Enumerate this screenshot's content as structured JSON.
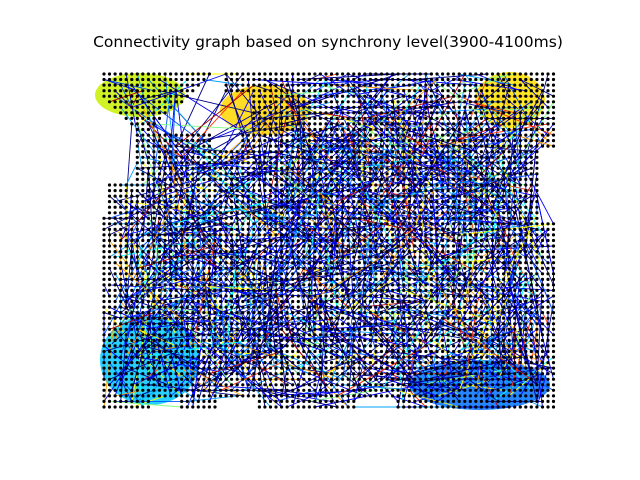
{
  "figure": {
    "title": "Connectivity graph based on synchrony level(3900-4100ms)"
  },
  "graph": {
    "node_color": "#000000",
    "edge_colormap": [
      "#00008b",
      "#0000ff",
      "#0050ff",
      "#00a0ff",
      "#00ffff",
      "#80ff80",
      "#ffff00",
      "#ffa000",
      "#ff3000",
      "#b00000"
    ],
    "region_colors": {
      "top-left": "#c8f000",
      "top-center": "#ffd700",
      "top-right": "#ffe000",
      "bottom-left": "#00c8ff",
      "bottom-right": "#0070ff"
    }
  }
}
